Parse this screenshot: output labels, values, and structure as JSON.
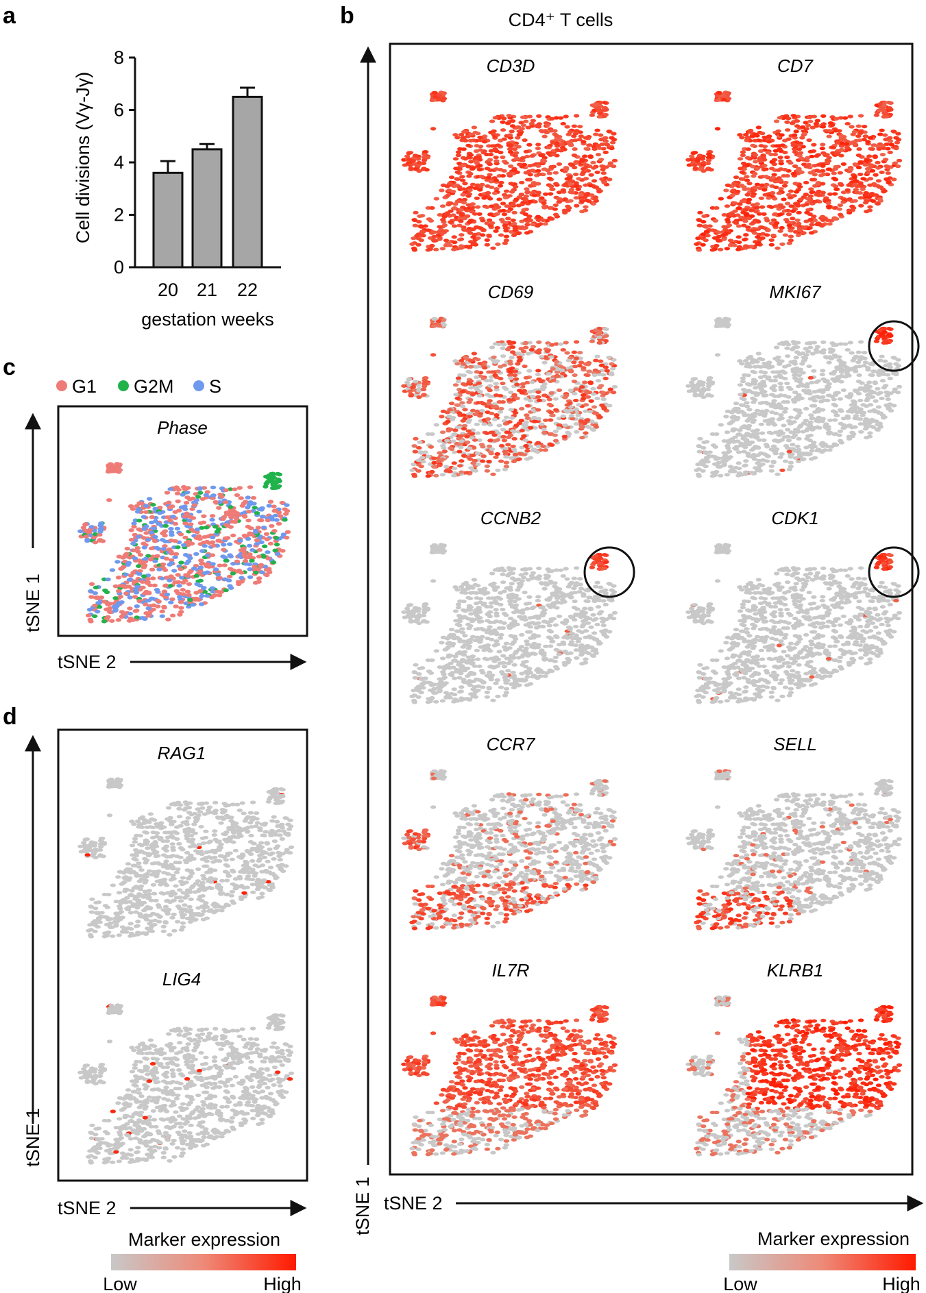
{
  "panels": {
    "a": {
      "label": "a",
      "chart_data": {
        "type": "bar",
        "categories": [
          "20",
          "21",
          "22"
        ],
        "values": [
          3.6,
          4.5,
          6.5
        ],
        "errors": [
          0.45,
          0.2,
          0.35
        ],
        "ylabel": "Cell divisions (Vγ-Jγ)",
        "xlabel": "gestation weeks",
        "ylim": [
          0,
          8
        ],
        "yticks": [
          "0",
          "2",
          "4",
          "6",
          "8"
        ],
        "bar_color": "#a6a6a6"
      }
    },
    "b": {
      "label": "b",
      "title": "CD4⁺ T cells",
      "genes": [
        "CD3D",
        "CD7",
        "CD69",
        "MKI67",
        "CCNB2",
        "CDK1",
        "CCR7",
        "SELL",
        "IL7R",
        "KLRB1"
      ],
      "circled": [
        "MKI67",
        "CCNB2",
        "CDK1"
      ],
      "y_axis": "tSNE 1",
      "x_axis": "tSNE 2",
      "legend": {
        "title": "Marker expression",
        "low": "Low",
        "high": "High"
      }
    },
    "c": {
      "label": "c",
      "plot_title": "Phase",
      "legend": [
        {
          "name": "G1",
          "color": "#ef7b76"
        },
        {
          "name": "G2M",
          "color": "#21b24b"
        },
        {
          "name": "S",
          "color": "#6f99ee"
        }
      ],
      "y_axis": "tSNE 1",
      "x_axis": "tSNE 2"
    },
    "d": {
      "label": "d",
      "genes": [
        "RAG1",
        "LIG4"
      ],
      "y_axis": "tSNE 1",
      "x_axis": "tSNE 2",
      "legend": {
        "title": "Marker expression",
        "low": "Low",
        "high": "High"
      }
    }
  },
  "chart_data": {
    "type": "bar",
    "title": "",
    "categories": [
      "20",
      "21",
      "22"
    ],
    "values": [
      3.6,
      4.5,
      6.5
    ],
    "errors": [
      0.45,
      0.2,
      0.35
    ],
    "xlabel": "gestation weeks",
    "ylabel": "Cell divisions (Vγ-Jγ)",
    "ylim": [
      0,
      8
    ]
  },
  "colors": {
    "low": "#c8c8c8",
    "high": "#ff1a00",
    "mid": "#ee6b55",
    "line": "#111111"
  }
}
